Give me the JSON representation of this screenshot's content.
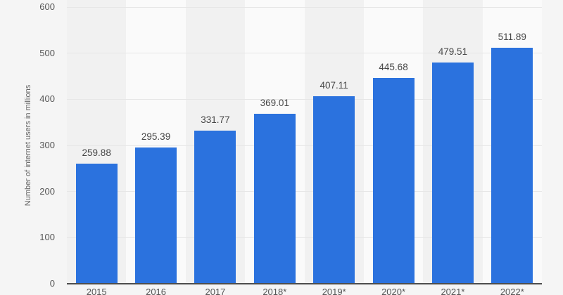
{
  "chart_data": {
    "type": "bar",
    "categories": [
      "2015",
      "2016",
      "2017",
      "2018*",
      "2019*",
      "2020*",
      "2021*",
      "2022*"
    ],
    "values": [
      259.88,
      295.39,
      331.77,
      369.01,
      407.11,
      445.68,
      479.51,
      511.89
    ],
    "value_labels": [
      "259.88",
      "295.39",
      "331.77",
      "369.01",
      "407.11",
      "445.68",
      "479.51",
      "511.89"
    ],
    "title": "",
    "xlabel": "",
    "ylabel": "Number of internet users in millions",
    "ylim": [
      0,
      600
    ],
    "yticks": [
      0,
      100,
      200,
      300,
      400,
      500,
      600
    ],
    "grid": true,
    "legend": false,
    "bar_color": "#2b72de",
    "background_color": "#f5f5f5",
    "band_color_even": "#f1f1f1",
    "band_color_odd": "#fafafa",
    "gridline_color": "#e6e6e6",
    "axis_line_color": "#4d4d4d",
    "tick_text_color": "#555555",
    "value_text_color": "#474747",
    "ylabel_text_color": "#666666"
  }
}
